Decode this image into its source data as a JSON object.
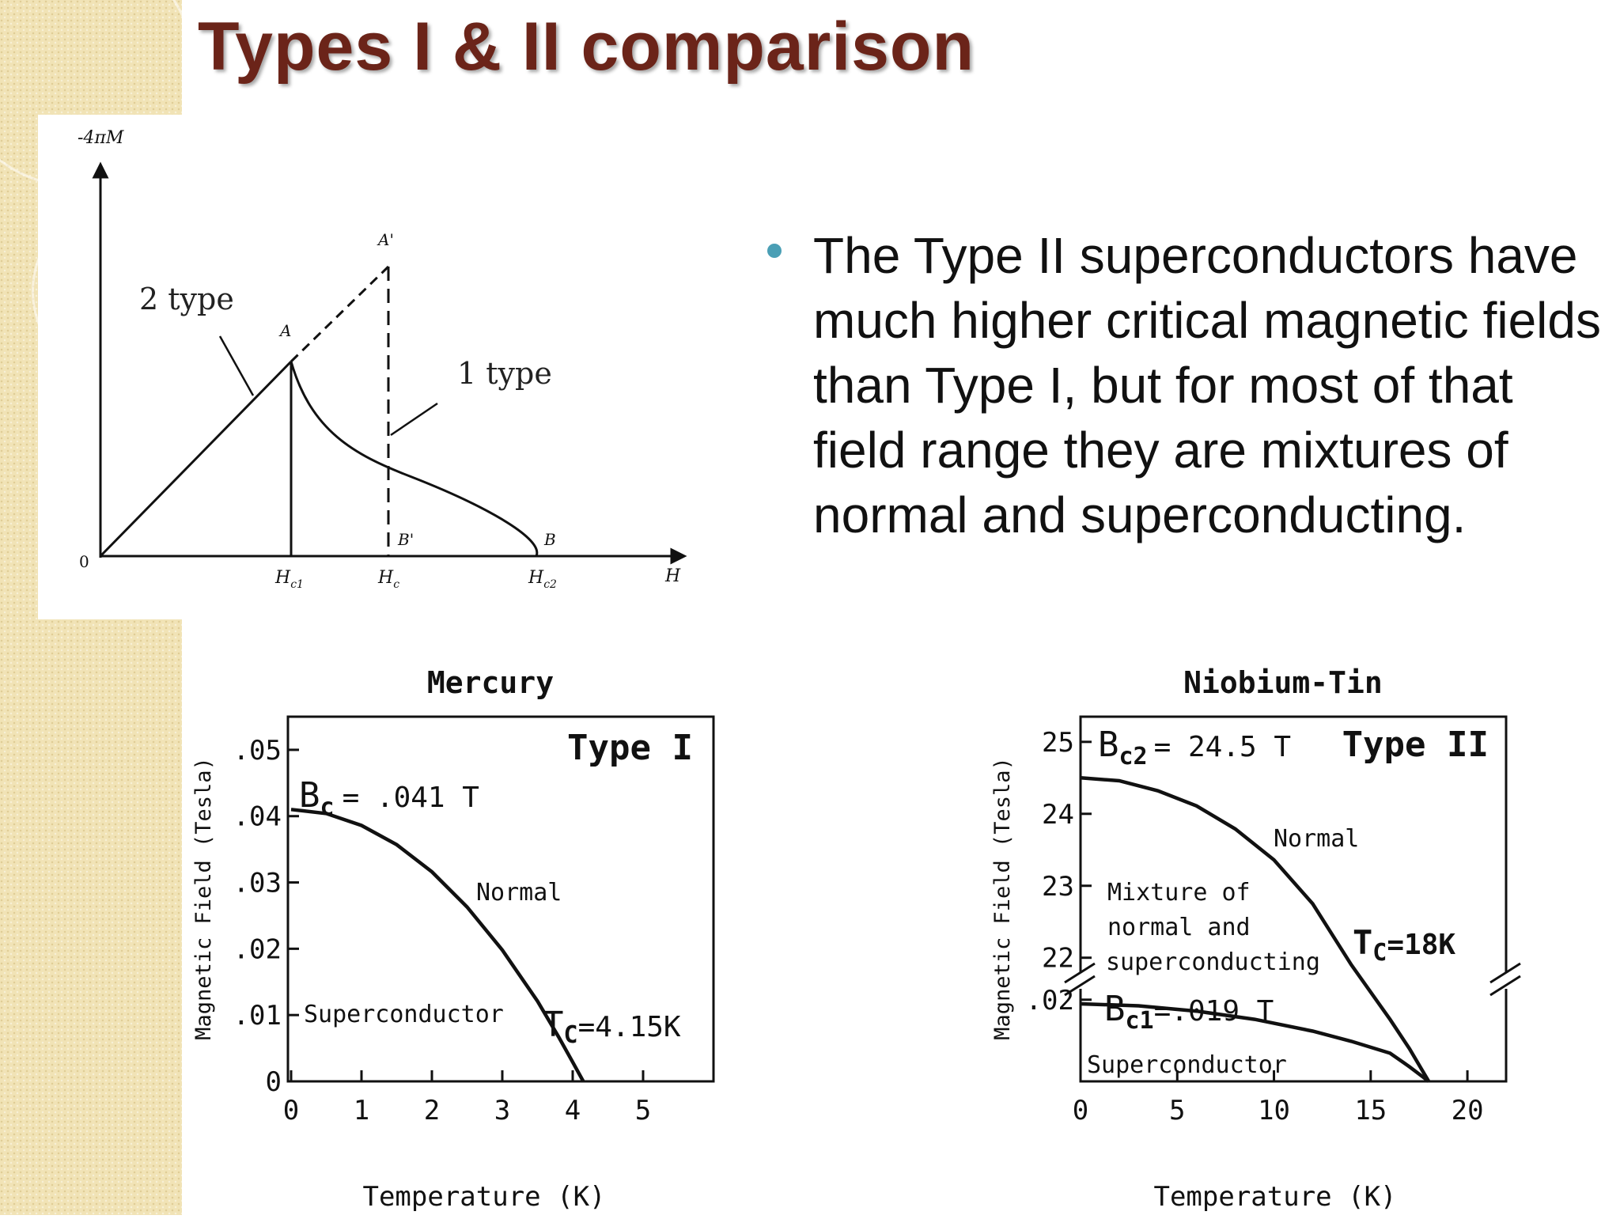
{
  "slide": {
    "title": "Types I & II comparison",
    "bullet": "The Type II superconductors have much higher critical magnetic fields than Type I, but for most of that field range they are mixtures of normal and superconducting."
  },
  "colors": {
    "title": "#6b2419",
    "bullet_dot": "#4a9fb5",
    "sidebar": "#f1e3b6",
    "ink": "#111111"
  },
  "magnetization_diagram": {
    "y_axis_label": "-4πM",
    "x_axis_label": "H",
    "origin_label": "0",
    "labels": {
      "type2": "2 type",
      "type1": "1 type",
      "A": "A",
      "A_prime": "A'",
      "B": "B",
      "B_prime": "B'"
    },
    "ticks": {
      "hc1_main": "H",
      "hc1_sub": "c1",
      "hc_main": "H",
      "hc_sub": "c",
      "hc2_main": "H",
      "hc2_sub": "c2"
    }
  },
  "chart_data": [
    {
      "type": "line",
      "title": "Mercury",
      "type_label": "Type I",
      "xlabel": "Temperature (K)",
      "ylabel": "Magnetic Field (Tesla)",
      "xlim": [
        0,
        6
      ],
      "ylim": [
        0,
        0.055
      ],
      "x_ticks": [
        0,
        1,
        2,
        3,
        4,
        5
      ],
      "x_tick_labels": [
        "0",
        "1",
        "2",
        "3",
        "4",
        "5"
      ],
      "y_ticks": [
        0,
        0.01,
        0.02,
        0.03,
        0.04,
        0.05
      ],
      "y_tick_labels": [
        "0",
        ".01",
        ".02",
        ".03",
        ".04",
        ".05"
      ],
      "series": [
        {
          "x": [
            0,
            0.5,
            1.0,
            1.5,
            2.0,
            2.5,
            3.0,
            3.5,
            3.8,
            4.0,
            4.15
          ],
          "y": [
            0.041,
            0.0404,
            0.0386,
            0.0357,
            0.0316,
            0.0263,
            0.0198,
            0.0121,
            0.0067,
            0.0029,
            0
          ]
        }
      ],
      "annotations": {
        "bc_main": "B",
        "bc_sub": "c",
        "bc_value": "= .041 T",
        "tc_main": "T",
        "tc_sub": "C",
        "tc_value": "=4.15K",
        "normal": "Normal",
        "superconductor": "Superconductor"
      }
    },
    {
      "type": "line",
      "title": "Niobium-Tin",
      "type_label": "Type II",
      "xlabel": "Temperature (K)",
      "ylabel": "Magnetic Field (Tesla)",
      "xlim": [
        0,
        22
      ],
      "x_ticks": [
        0,
        5,
        10,
        15,
        20
      ],
      "x_tick_labels": [
        "0",
        "5",
        "10",
        "15",
        "20"
      ],
      "y_axis_break": true,
      "y_tick_labels": [
        "25",
        "24",
        "23",
        "22",
        ".02"
      ],
      "series": [
        {
          "x": [
            0,
            2,
            4,
            6,
            8,
            10,
            12,
            14,
            16,
            17,
            18
          ],
          "y": [
            24.5,
            24.46,
            24.32,
            24.11,
            23.79,
            23.36,
            22.75,
            21.9,
            20.6,
            19.8,
            18.9
          ]
        },
        {
          "x": [
            0,
            3,
            6,
            9,
            12,
            14,
            16,
            17,
            18
          ],
          "y": [
            0.019,
            0.0185,
            0.0172,
            0.0152,
            0.0123,
            0.0098,
            0.0069,
            0.0036,
            0
          ]
        }
      ],
      "annotations": {
        "bc2_main": "B",
        "bc2_sub": "c2",
        "bc2_value": "= 24.5 T",
        "bc1_main": "B",
        "bc1_sub": "c1",
        "bc1_value": "=.019 T",
        "tc_main": "T",
        "tc_sub": "C",
        "tc_value": "=18K",
        "normal": "Normal",
        "mixture_line1": "Mixture of",
        "mixture_line2": "normal and",
        "mixture_line3": "superconducting",
        "superconductor": "Superconductor"
      }
    }
  ]
}
